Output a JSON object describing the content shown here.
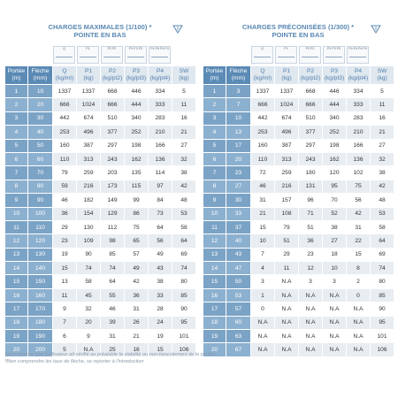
{
  "tables": [
    {
      "title": [
        "CHARGES MAXIMALES (1/100) *",
        "POINTE EN BAS"
      ],
      "diagrams": [
        "Q",
        "P1",
        "P2 P2",
        "P3 P3 P3",
        "P4 P4 P4 P4"
      ],
      "columns": [
        {
          "label": "Portée",
          "unit": "(m)"
        },
        {
          "label": "Flèche",
          "unit": "(mm)"
        },
        {
          "label": "Q",
          "unit": "(kg/ml)"
        },
        {
          "label": "P1",
          "unit": "(kg)"
        },
        {
          "label": "P2",
          "unit": "(kg/pt2)"
        },
        {
          "label": "P3",
          "unit": "(kg/pt3)"
        },
        {
          "label": "P4",
          "unit": "(kg/pt4)"
        },
        {
          "label": "SW",
          "unit": "(kg)"
        }
      ],
      "rows": [
        [
          1,
          10,
          1337,
          1337,
          668,
          446,
          334,
          5
        ],
        [
          2,
          20,
          666,
          1024,
          666,
          444,
          333,
          11
        ],
        [
          3,
          30,
          442,
          674,
          510,
          340,
          283,
          16
        ],
        [
          4,
          40,
          253,
          496,
          377,
          252,
          210,
          21
        ],
        [
          5,
          50,
          160,
          387,
          297,
          198,
          166,
          27
        ],
        [
          6,
          60,
          110,
          313,
          243,
          162,
          136,
          32
        ],
        [
          7,
          70,
          79,
          259,
          203,
          135,
          114,
          38
        ],
        [
          8,
          80,
          59,
          216,
          173,
          115,
          97,
          42
        ],
        [
          9,
          90,
          46,
          182,
          149,
          99,
          84,
          48
        ],
        [
          10,
          100,
          36,
          154,
          129,
          86,
          73,
          53
        ],
        [
          11,
          110,
          29,
          130,
          112,
          75,
          64,
          58
        ],
        [
          12,
          120,
          23,
          109,
          98,
          65,
          56,
          64
        ],
        [
          13,
          130,
          19,
          90,
          85,
          57,
          49,
          69
        ],
        [
          14,
          140,
          15,
          74,
          74,
          49,
          43,
          74
        ],
        [
          15,
          150,
          13,
          58,
          64,
          42,
          38,
          80
        ],
        [
          16,
          160,
          11,
          45,
          55,
          36,
          33,
          85
        ],
        [
          17,
          170,
          9,
          32,
          46,
          31,
          28,
          90
        ],
        [
          18,
          180,
          7,
          20,
          39,
          26,
          24,
          95
        ],
        [
          19,
          190,
          6,
          9,
          31,
          21,
          19,
          101
        ],
        [
          20,
          200,
          5,
          "N.A",
          25,
          16,
          15,
          106
        ]
      ]
    },
    {
      "title": [
        "CHARGES PRÉCONISÉES (1/300) *",
        "POINTE EN BAS"
      ],
      "diagrams": [
        "Q",
        "P1",
        "P2 P2",
        "P3 P3 P3",
        "P4 P4 P4 P4"
      ],
      "columns": [
        {
          "label": "Portée",
          "unit": "(m)"
        },
        {
          "label": "Flèche",
          "unit": "(mm)"
        },
        {
          "label": "Q",
          "unit": "(kg/ml)"
        },
        {
          "label": "P1",
          "unit": "(kg)"
        },
        {
          "label": "P2",
          "unit": "(kg/pt2)"
        },
        {
          "label": "P3",
          "unit": "(kg/pt3)"
        },
        {
          "label": "P4",
          "unit": "(kg/pt4)"
        },
        {
          "label": "SW",
          "unit": "(kg)"
        }
      ],
      "rows": [
        [
          1,
          3,
          1337,
          1337,
          668,
          446,
          334,
          5
        ],
        [
          2,
          7,
          666,
          1024,
          666,
          444,
          333,
          11
        ],
        [
          3,
          10,
          442,
          674,
          510,
          340,
          283,
          16
        ],
        [
          4,
          13,
          253,
          496,
          377,
          252,
          210,
          21
        ],
        [
          5,
          17,
          160,
          387,
          297,
          198,
          166,
          27
        ],
        [
          6,
          20,
          110,
          313,
          243,
          162,
          136,
          32
        ],
        [
          7,
          23,
          72,
          259,
          180,
          120,
          102,
          38
        ],
        [
          8,
          27,
          46,
          216,
          131,
          95,
          75,
          42
        ],
        [
          9,
          30,
          31,
          157,
          96,
          70,
          56,
          48
        ],
        [
          10,
          33,
          21,
          108,
          71,
          52,
          42,
          53
        ],
        [
          11,
          37,
          15,
          79,
          51,
          38,
          31,
          58
        ],
        [
          12,
          40,
          10,
          51,
          36,
          27,
          22,
          64
        ],
        [
          13,
          43,
          7,
          29,
          23,
          18,
          15,
          69
        ],
        [
          14,
          47,
          4,
          11,
          12,
          10,
          8,
          74
        ],
        [
          15,
          50,
          3,
          "N.A",
          3,
          3,
          2,
          80
        ],
        [
          16,
          53,
          1,
          "N.A",
          "N.A",
          "N.A",
          0,
          85
        ],
        [
          17,
          57,
          0,
          "N.A",
          "N.A",
          "N.A",
          "N.A",
          90
        ],
        [
          18,
          60,
          "N.A",
          "N.A",
          "N.A",
          "N.A",
          "N.A",
          95
        ],
        [
          19,
          63,
          "N.A",
          "N.A",
          "N.A",
          "N.A",
          "N.A",
          101
        ],
        [
          20,
          67,
          "N.A",
          "N.A",
          "N.A",
          "N.A",
          "N.A",
          106
        ]
      ]
    }
  ],
  "footnotes": [
    "Sous réserve que l'utilisateur ait vérifié au préalable la stabilité ou non-basculement de la poutre",
    "*Bien comprendre les taux de flèche, se reporter à l'introduction"
  ]
}
